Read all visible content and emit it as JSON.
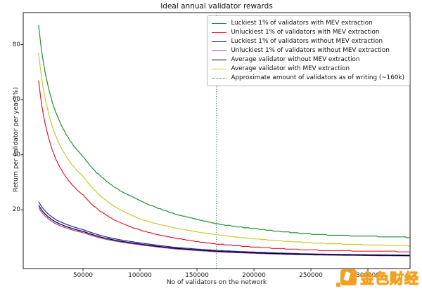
{
  "chart": {
    "title": "Ideal annual validator rewards",
    "xlabel": "No of validators on the network",
    "ylabel": "Return per validator per year (%)"
  },
  "watermark": {
    "text": "金色财经"
  },
  "chart_data": {
    "type": "line",
    "title": "Ideal annual validator rewards",
    "xlabel": "No of validators on the network",
    "ylabel": "Return per validator per year (%)",
    "grid": false,
    "legend_position": "upper right",
    "xlim": [
      -2500,
      337000
    ],
    "ylim": [
      -1.3,
      91.6
    ],
    "x_ticks": [
      50000,
      100000,
      150000,
      200000,
      250000,
      300000
    ],
    "y_ticks": [
      20,
      40,
      60,
      80
    ],
    "x": [
      11000,
      13000,
      15000,
      17000,
      20000,
      23000,
      26000,
      30000,
      35000,
      40000,
      45000,
      50000,
      57000,
      65000,
      75000,
      85000,
      100000,
      115000,
      130000,
      150000,
      167000,
      185000,
      200000,
      220000,
      240000,
      260000,
      280000,
      300000,
      320000,
      337000
    ],
    "series": [
      {
        "name": "Luckiest 1% of validators with MEV extraction",
        "color": "#1f9032",
        "step": 0.3,
        "values": [
          87,
          79.7,
          74,
          69.3,
          63.6,
          59.1,
          55.5,
          51.5,
          47.5,
          44.3,
          41.6,
          39.4,
          35.7,
          32.3,
          29,
          26.3,
          23.3,
          20.7,
          18.6,
          16.5,
          15,
          13.9,
          13.2,
          12.3,
          11.5,
          11,
          10.7,
          10.45,
          10.2,
          10
        ]
      },
      {
        "name": "Unluckiest 1% of validators with MEV extraction",
        "color": "#e01b2c",
        "step": 0.25,
        "values": [
          67,
          60.2,
          54.9,
          50.7,
          45.7,
          41.8,
          38.6,
          35.2,
          31.9,
          29.3,
          27.1,
          25.4,
          22.3,
          19.5,
          16.9,
          14.9,
          12.7,
          11,
          9.8,
          8.5,
          7.6,
          7,
          6.5,
          6,
          5.6,
          5.32,
          5.16,
          5.03,
          4.9,
          4.8
        ]
      },
      {
        "name": "Luckiest 1% of validators without MEV extraction",
        "color": "#2426c4",
        "step": 0,
        "values": [
          23,
          21.6,
          20.45,
          19.5,
          18.3,
          17.35,
          16.5,
          15.65,
          14.8,
          14.05,
          13.4,
          12.85,
          11.8,
          10.75,
          9.75,
          8.96,
          8.02,
          7.18,
          6.45,
          5.78,
          5.3,
          4.94,
          4.68,
          4.38,
          4.12,
          3.94,
          3.83,
          3.73,
          3.64,
          3.56
        ]
      },
      {
        "name": "Unluckiest 1% of validators without MEV extraction",
        "color": "#9c39a8",
        "step": 0,
        "values": [
          20.8,
          19.56,
          18.5,
          17.63,
          16.6,
          15.74,
          14.97,
          14.2,
          13.44,
          12.78,
          12.21,
          11.74,
          10.78,
          9.81,
          8.9,
          8.18,
          7.31,
          6.53,
          5.85,
          5.24,
          4.79,
          4.46,
          4.24,
          3.97,
          3.75,
          3.6,
          3.51,
          3.43,
          3.35,
          3.29
        ]
      },
      {
        "name": "Average validator without MEV extraction",
        "color": "#000000",
        "step": 0,
        "values": [
          21.7,
          20.4,
          19.3,
          18.4,
          17.3,
          16.4,
          15.6,
          14.8,
          14,
          13.3,
          12.7,
          12.2,
          11.2,
          10.2,
          9.25,
          8.5,
          7.6,
          6.8,
          6.1,
          5.46,
          5,
          4.66,
          4.42,
          4.14,
          3.9,
          3.74,
          3.64,
          3.55,
          3.47,
          3.4
        ]
      },
      {
        "name": "Average validator with MEV extraction",
        "color": "#c2cb2e",
        "step": 0.22,
        "values": [
          77,
          69.9,
          64.4,
          59.9,
          54.6,
          50.3,
          46.9,
          43.2,
          39.5,
          36.6,
          34.2,
          32.2,
          28.4,
          25.1,
          21.9,
          19.5,
          16.7,
          14.9,
          13.5,
          12,
          11,
          10.1,
          9.5,
          8.85,
          8.3,
          7.85,
          7.56,
          7.31,
          7.08,
          6.9
        ]
      }
    ],
    "vline": {
      "x": 167000,
      "label": "Approximate amount of validators as of writing (~160k)",
      "color": "#2f6f6f",
      "style": "dotted"
    }
  }
}
